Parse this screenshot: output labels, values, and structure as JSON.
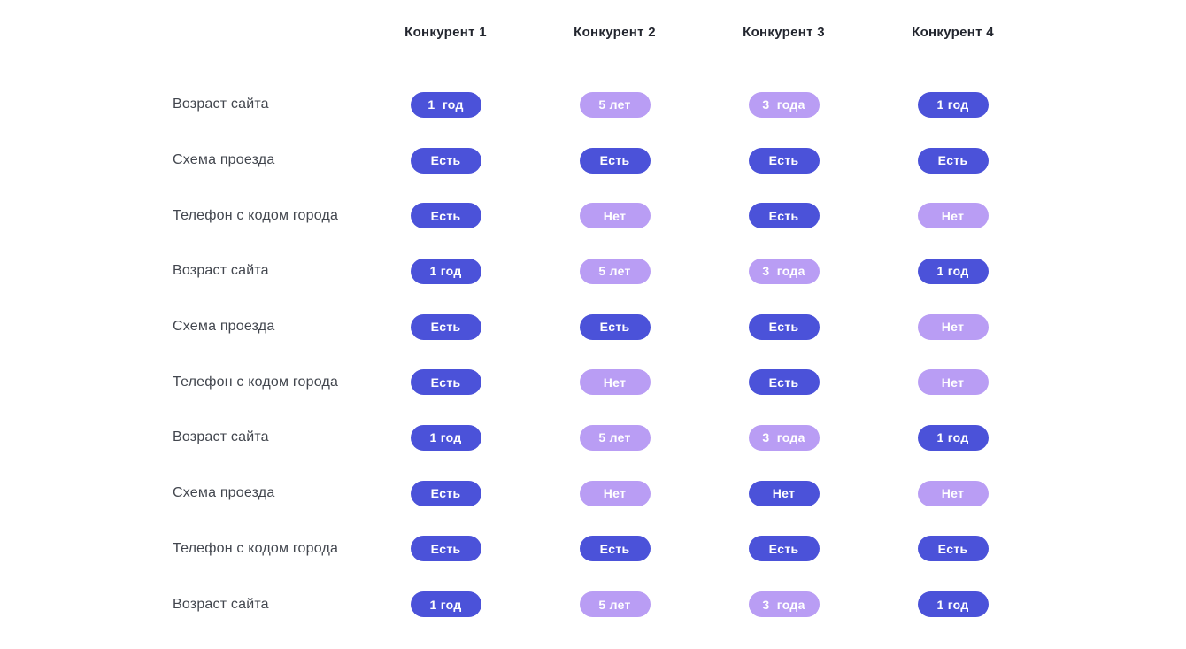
{
  "page": {
    "background": "#ffffff"
  },
  "colors": {
    "pill_filled": "#4b52d9",
    "pill_light": "#b99df4",
    "pill_text": "#ffffff",
    "header_text": "#22252e",
    "label_text": "#42464e"
  },
  "chart_data": {
    "type": "table",
    "title": "",
    "legend": "off",
    "grid": "off",
    "columns": [
      "Конкурент 1",
      "Конкурент 2",
      "Конкурент 3",
      "Конкурент 4"
    ],
    "rows": [
      {
        "label": "Возраст сайта",
        "values": [
          "1  год",
          "5 лет",
          "3  года",
          "1 год"
        ],
        "variants": [
          "filled",
          "light",
          "light",
          "filled"
        ]
      },
      {
        "label": "Схема проезда",
        "values": [
          "Есть",
          "Есть",
          "Есть",
          "Есть"
        ],
        "variants": [
          "filled",
          "filled",
          "filled",
          "filled"
        ]
      },
      {
        "label": "Телефон с кодом города",
        "values": [
          "Есть",
          "Нет",
          "Есть",
          "Нет"
        ],
        "variants": [
          "filled",
          "light",
          "filled",
          "light"
        ]
      },
      {
        "label": "Возраст сайта",
        "values": [
          "1 год",
          "5 лет",
          "3  года",
          "1 год"
        ],
        "variants": [
          "filled",
          "light",
          "light",
          "filled"
        ]
      },
      {
        "label": "Схема проезда",
        "values": [
          "Есть",
          "Есть",
          "Есть",
          "Нет"
        ],
        "variants": [
          "filled",
          "filled",
          "filled",
          "light"
        ]
      },
      {
        "label": "Телефон с кодом города",
        "values": [
          "Есть",
          "Нет",
          "Есть",
          "Нет"
        ],
        "variants": [
          "filled",
          "light",
          "filled",
          "light"
        ]
      },
      {
        "label": "Возраст сайта",
        "values": [
          "1 год",
          "5 лет",
          "3  года",
          "1 год"
        ],
        "variants": [
          "filled",
          "light",
          "light",
          "filled"
        ]
      },
      {
        "label": "Схема проезда",
        "values": [
          "Есть",
          "Нет",
          "Нет",
          "Нет"
        ],
        "variants": [
          "filled",
          "light",
          "filled",
          "light"
        ]
      },
      {
        "label": "Телефон с кодом города",
        "values": [
          "Есть",
          "Есть",
          "Есть",
          "Есть"
        ],
        "variants": [
          "filled",
          "filled",
          "filled",
          "filled"
        ]
      },
      {
        "label": "Возраст сайта",
        "values": [
          "1 год",
          "5 лет",
          "3  года",
          "1 год"
        ],
        "variants": [
          "filled",
          "light",
          "light",
          "filled"
        ]
      }
    ]
  }
}
